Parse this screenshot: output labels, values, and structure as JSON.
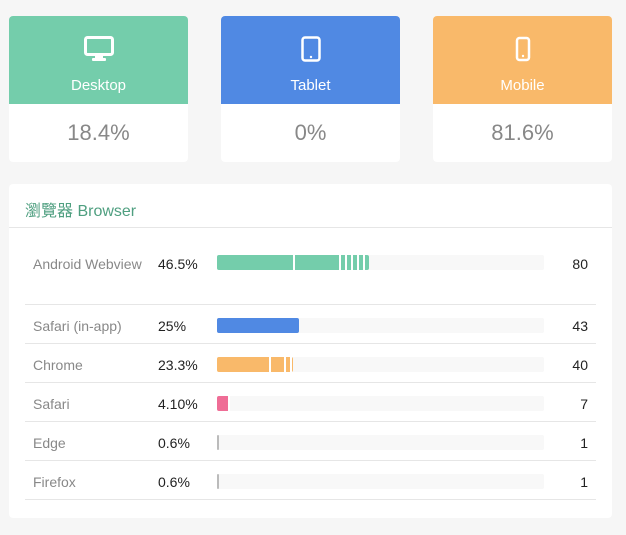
{
  "devices": [
    {
      "label": "Desktop",
      "value": "18.4%",
      "icon": "desktop-icon",
      "color": "#74cdab"
    },
    {
      "label": "Tablet",
      "value": "0%",
      "icon": "tablet-icon",
      "color": "#5089e3"
    },
    {
      "label": "Mobile",
      "value": "81.6%",
      "icon": "mobile-icon",
      "color": "#f9b96a"
    }
  ],
  "browser": {
    "title": "瀏覽器 Browser",
    "rows": [
      {
        "name": "Android Webview",
        "percent": "46.5%",
        "fraction": 0.465,
        "count": "80",
        "color": "#74cdab",
        "segments": [
          0.5,
          0.8,
          0.84,
          0.88,
          0.92,
          0.96
        ]
      },
      {
        "name": "Safari (in-app)",
        "percent": "25%",
        "fraction": 0.25,
        "count": "43",
        "color": "#5089e3",
        "segments": []
      },
      {
        "name": "Chrome",
        "percent": "23.3%",
        "fraction": 0.233,
        "count": "40",
        "color": "#f9b96a",
        "segments": [
          0.68,
          0.88,
          0.96
        ]
      },
      {
        "name": "Safari",
        "percent": "4.10%",
        "fraction": 0.041,
        "count": "7",
        "color": "#ef6d96",
        "segments": [
          0.85
        ]
      },
      {
        "name": "Edge",
        "percent": "0.6%",
        "fraction": 0.006,
        "count": "1",
        "color": "#bbbbbb",
        "segments": []
      },
      {
        "name": "Firefox",
        "percent": "0.6%",
        "fraction": 0.006,
        "count": "1",
        "color": "#bbbbbb",
        "segments": []
      }
    ]
  }
}
